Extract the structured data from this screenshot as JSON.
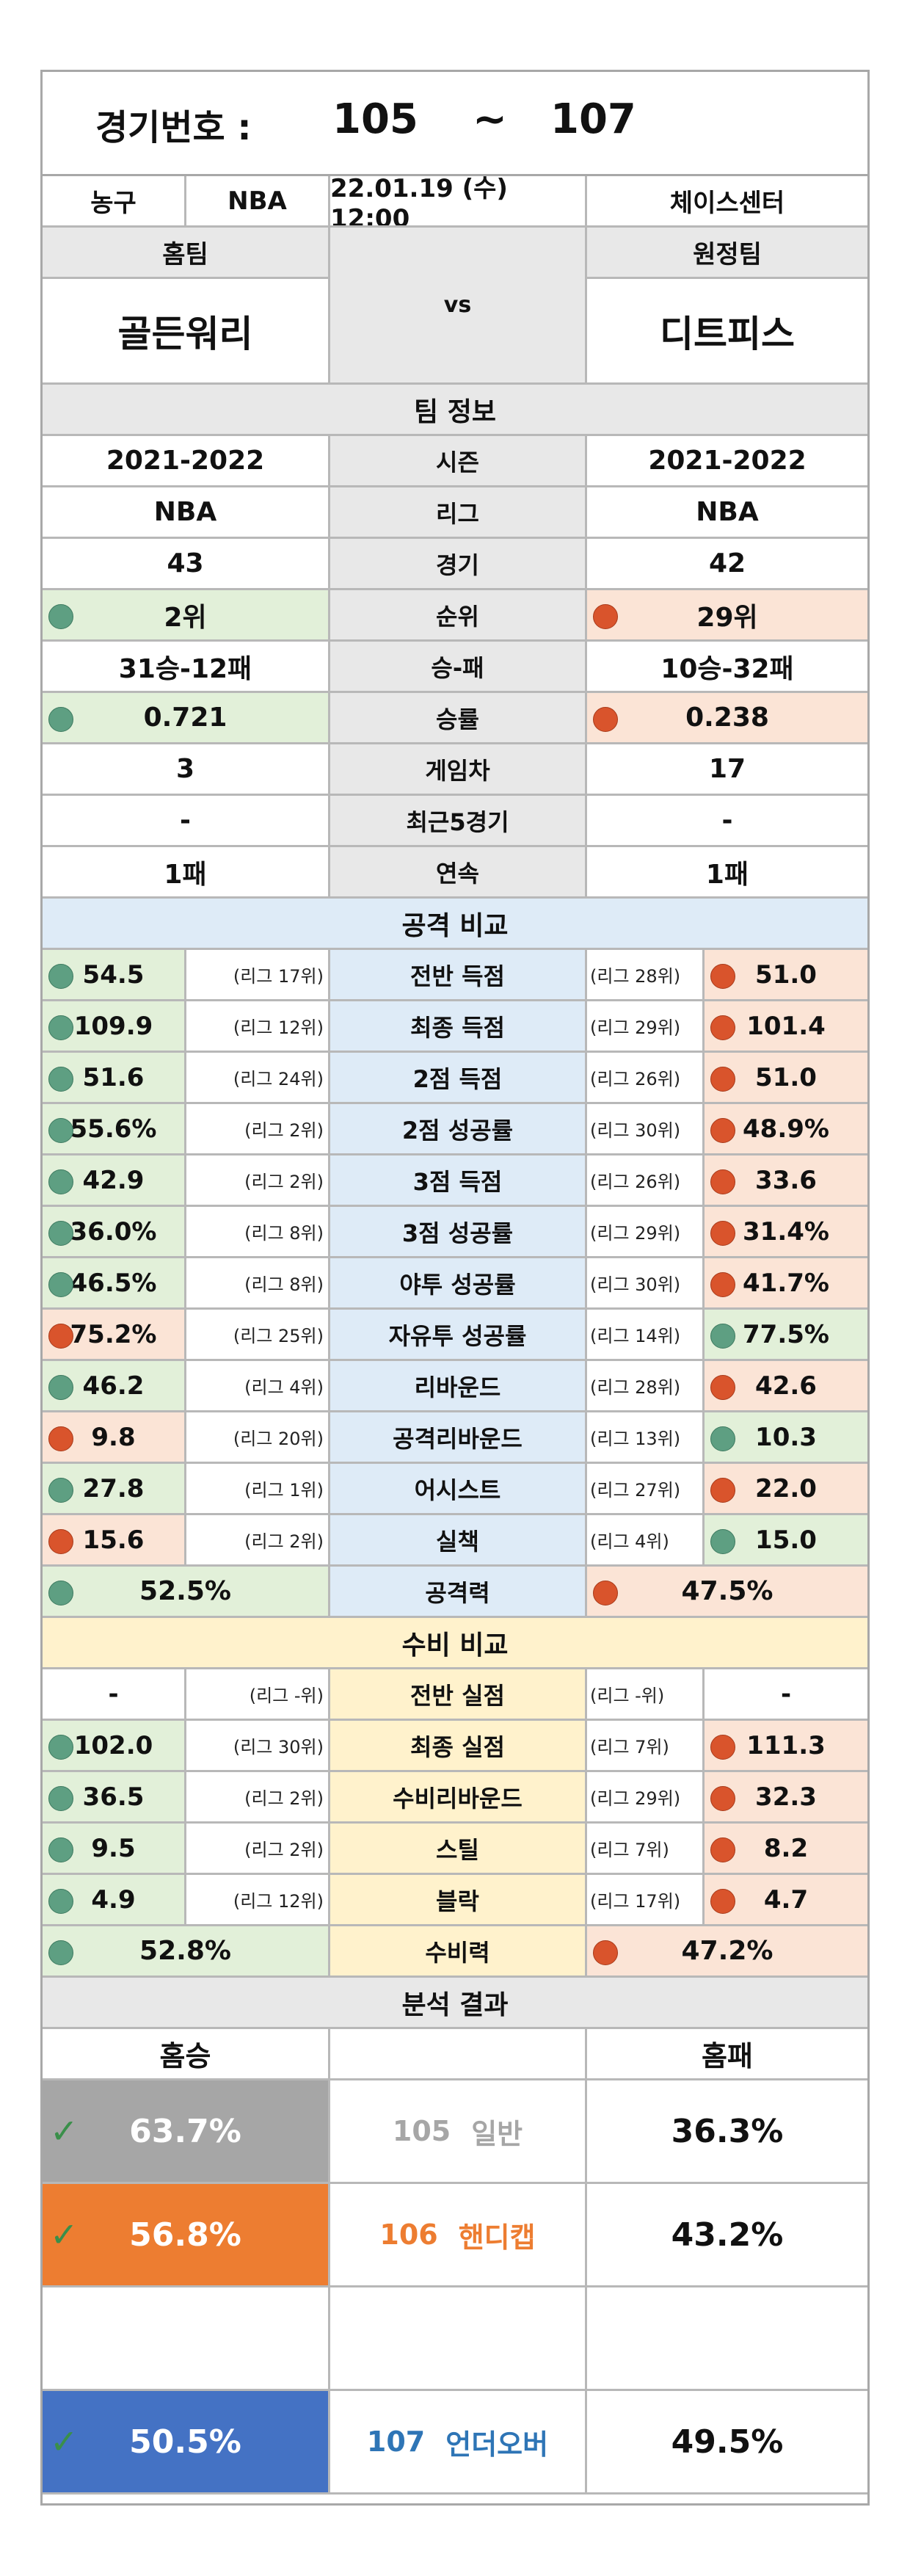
{
  "title": {
    "label": "경기번호 :",
    "from": "105",
    "tilde": "~",
    "to": "107"
  },
  "info": {
    "sport": "농구",
    "league": "NBA",
    "datetime": "22.01.19 (수) 12:00",
    "venue": "체이스센터"
  },
  "teams": {
    "home_label": "홈팀",
    "away_label": "원정팀",
    "vs": "vs",
    "home": "골든워리",
    "away": "디트피스"
  },
  "team_info": {
    "header": "팀 정보",
    "rows": [
      {
        "label": "시즌",
        "home": "2021-2022",
        "away": "2021-2022"
      },
      {
        "label": "리그",
        "home": "NBA",
        "away": "NBA"
      },
      {
        "label": "경기",
        "home": "43",
        "away": "42"
      },
      {
        "label": "순위",
        "home": "2위",
        "away": "29위"
      },
      {
        "label": "승-패",
        "home": "31승-12패",
        "away": "10승-32패"
      },
      {
        "label": "승률",
        "home": "0.721",
        "away": "0.238"
      },
      {
        "label": "게임차",
        "home": "3",
        "away": "17"
      },
      {
        "label": "최근5경기",
        "home": "-",
        "away": "-"
      },
      {
        "label": "연속",
        "home": "1패",
        "away": "1패"
      }
    ]
  },
  "attack": {
    "header": "공격 비교",
    "rows": [
      {
        "label": "전반 득점",
        "home": "54.5",
        "home_rank": "(리그 17위)",
        "away": "51.0",
        "away_rank": "(리그 28위)"
      },
      {
        "label": "최종 득점",
        "home": "109.9",
        "home_rank": "(리그 12위)",
        "away": "101.4",
        "away_rank": "(리그 29위)"
      },
      {
        "label": "2점 득점",
        "home": "51.6",
        "home_rank": "(리그 24위)",
        "away": "51.0",
        "away_rank": "(리그 26위)"
      },
      {
        "label": "2점 성공률",
        "home": "55.6%",
        "home_rank": "(리그 2위)",
        "away": "48.9%",
        "away_rank": "(리그 30위)"
      },
      {
        "label": "3점 득점",
        "home": "42.9",
        "home_rank": "(리그 2위)",
        "away": "33.6",
        "away_rank": "(리그 26위)"
      },
      {
        "label": "3점 성공률",
        "home": "36.0%",
        "home_rank": "(리그 8위)",
        "away": "31.4%",
        "away_rank": "(리그 29위)"
      },
      {
        "label": "야투 성공률",
        "home": "46.5%",
        "home_rank": "(리그 8위)",
        "away": "41.7%",
        "away_rank": "(리그 30위)"
      },
      {
        "label": "자유투 성공률",
        "home": "75.2%",
        "home_rank": "(리그 25위)",
        "away": "77.5%",
        "away_rank": "(리그 14위)"
      },
      {
        "label": "리바운드",
        "home": "46.2",
        "home_rank": "(리그 4위)",
        "away": "42.6",
        "away_rank": "(리그 28위)"
      },
      {
        "label": "공격리바운드",
        "home": "9.8",
        "home_rank": "(리그 20위)",
        "away": "10.3",
        "away_rank": "(리그 13위)"
      },
      {
        "label": "어시스트",
        "home": "27.8",
        "home_rank": "(리그 1위)",
        "away": "22.0",
        "away_rank": "(리그 27위)"
      },
      {
        "label": "실책",
        "home": "15.6",
        "home_rank": "(리그 2위)",
        "away": "15.0",
        "away_rank": "(리그 4위)"
      }
    ],
    "total": {
      "label": "공격력",
      "home": "52.5%",
      "away": "47.5%"
    }
  },
  "defense": {
    "header": "수비 비교",
    "rows": [
      {
        "label": "전반 실점",
        "home": "-",
        "home_rank": "(리그 -위)",
        "away": "-",
        "away_rank": "(리그 -위)"
      },
      {
        "label": "최종 실점",
        "home": "102.0",
        "home_rank": "(리그 30위)",
        "away": "111.3",
        "away_rank": "(리그 7위)"
      },
      {
        "label": "수비리바운드",
        "home": "36.5",
        "home_rank": "(리그 2위)",
        "away": "32.3",
        "away_rank": "(리그 29위)"
      },
      {
        "label": "스틸",
        "home": "9.5",
        "home_rank": "(리그 2위)",
        "away": "8.2",
        "away_rank": "(리그 7위)"
      },
      {
        "label": "블락",
        "home": "4.9",
        "home_rank": "(리그 12위)",
        "away": "4.7",
        "away_rank": "(리그 17위)"
      }
    ],
    "total": {
      "label": "수비력",
      "home": "52.8%",
      "away": "47.2%"
    }
  },
  "analysis": {
    "header": "분석 결과",
    "home_header": "홈승",
    "away_header": "홈패",
    "rows": [
      {
        "win": "63.7%",
        "num": "105",
        "type": "일반",
        "loss": "36.3%"
      },
      {
        "win": "56.8%",
        "num": "106",
        "type": "핸디캡",
        "loss": "43.2%"
      },
      {
        "win": "50.5%",
        "num": "107",
        "type": "언더오버",
        "loss": "49.5%"
      }
    ]
  }
}
